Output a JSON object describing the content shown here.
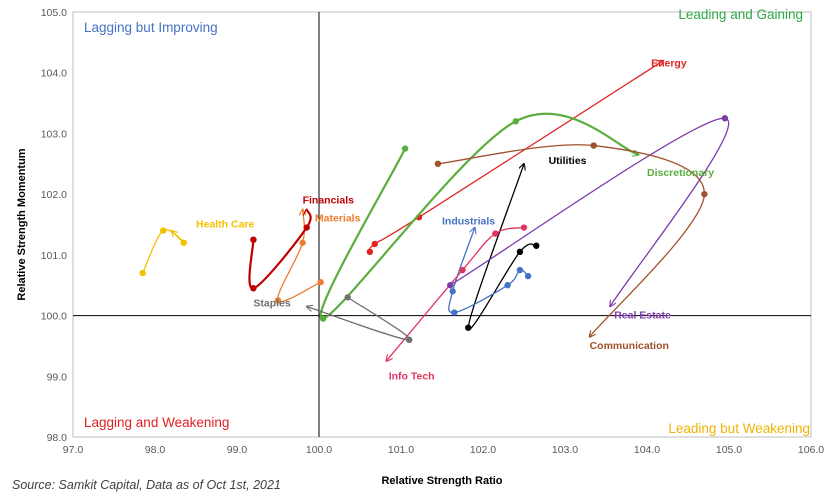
{
  "chart_data": {
    "type": "scatter",
    "title": "",
    "xlabel": "Relative Strength Ratio",
    "ylabel": "Relative Strength Momentum",
    "xlim": [
      97.0,
      106.0
    ],
    "ylim": [
      98.0,
      105.0
    ],
    "x_ticks": [
      "97.0",
      "98.0",
      "99.0",
      "100.0",
      "101.0",
      "102.0",
      "103.0",
      "104.0",
      "105.0",
      "106.0"
    ],
    "y_ticks": [
      "98.0",
      "99.0",
      "100.0",
      "101.0",
      "102.0",
      "103.0",
      "104.0",
      "105.0"
    ],
    "center": [
      100.0,
      100.0
    ],
    "quadrants": [
      {
        "key": "lagging_improving",
        "label": "Lagging but Improving",
        "color": "#4472C4",
        "pos": "top-left"
      },
      {
        "key": "leading_gaining",
        "label": "Leading and Gaining",
        "color": "#2EA845",
        "pos": "top-right"
      },
      {
        "key": "lagging_weakening",
        "label": "Lagging and Weakening",
        "color": "#E02020",
        "pos": "bottom-left"
      },
      {
        "key": "leading_weakening",
        "label": "Leading but Weakening",
        "color": "#F0B400",
        "pos": "bottom-right"
      }
    ],
    "series": [
      {
        "name": "Energy",
        "color": "#E02424",
        "x": [
          100.62,
          100.68,
          101.22,
          104.2
        ],
        "y": [
          101.05,
          101.18,
          101.62,
          104.2
        ],
        "label_at": [
          104.05,
          104.1
        ]
      },
      {
        "name": "Discretionary",
        "color": "#5BAE3E",
        "x": [
          101.05,
          100.05,
          102.4,
          103.9
        ],
        "y": [
          102.75,
          99.95,
          103.2,
          102.65
        ],
        "label_at": [
          104.0,
          102.3
        ]
      },
      {
        "name": "Utilities",
        "color": "#000000",
        "x": [
          102.65,
          102.45,
          101.82,
          102.5
        ],
        "y": [
          101.15,
          101.05,
          99.8,
          102.5
        ],
        "label_at": [
          102.8,
          102.5
        ]
      },
      {
        "name": "Industrials",
        "color": "#4472C4",
        "x": [
          102.55,
          102.45,
          102.3,
          101.65,
          101.63,
          101.9
        ],
        "y": [
          100.65,
          100.75,
          100.5,
          100.05,
          100.4,
          101.45
        ],
        "label_at": [
          101.5,
          101.5
        ]
      },
      {
        "name": "Info Tech",
        "color": "#E03560",
        "x": [
          102.5,
          102.15,
          101.75,
          100.82
        ],
        "y": [
          101.45,
          101.35,
          100.75,
          99.25
        ],
        "label_at": [
          100.85,
          98.95
        ]
      },
      {
        "name": "Real Estate",
        "color": "#7C3DAB",
        "x": [
          101.6,
          104.95,
          103.55
        ],
        "y": [
          100.5,
          103.25,
          100.15
        ],
        "label_at": [
          103.6,
          99.95
        ]
      },
      {
        "name": "Communication",
        "color": "#A0522D",
        "x": [
          101.45,
          103.35,
          104.7,
          103.3
        ],
        "y": [
          102.5,
          102.8,
          102.0,
          99.65
        ],
        "label_at": [
          103.3,
          99.45
        ]
      },
      {
        "name": "Staples",
        "color": "#707070",
        "x": [
          100.35,
          101.1,
          99.85
        ],
        "y": [
          100.3,
          99.6,
          100.15
        ],
        "label_at": [
          99.2,
          100.15
        ]
      },
      {
        "name": "Materials",
        "color": "#ED7D31",
        "x": [
          100.02,
          99.5,
          99.8,
          99.8
        ],
        "y": [
          100.55,
          100.25,
          101.2,
          101.75
        ],
        "label_at": [
          99.95,
          101.55
        ]
      },
      {
        "name": "Financials",
        "color": "#C00000",
        "x": [
          99.2,
          99.2,
          99.85,
          99.85
        ],
        "y": [
          101.25,
          100.45,
          101.45,
          101.75
        ],
        "label_at": [
          99.8,
          101.85
        ]
      },
      {
        "name": "Health Care",
        "color": "#F5C000",
        "x": [
          97.85,
          98.1,
          98.35,
          98.2
        ],
        "y": [
          100.7,
          101.4,
          101.2,
          101.4
        ],
        "label_at": [
          98.5,
          101.45
        ]
      }
    ]
  },
  "source_text": "Source: Samkit Capital, Data as of Oct 1st, 2021"
}
